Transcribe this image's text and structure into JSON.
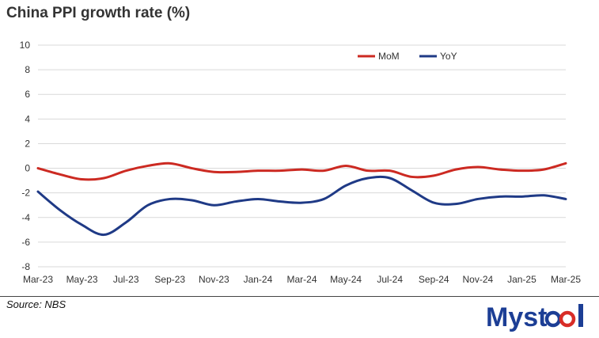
{
  "title": "China PPI growth rate (%)",
  "source": "Source: NBS",
  "logo_text": "Mysteel",
  "colors": {
    "MoM": "#cc2a22",
    "YoY": "#1f3a86",
    "grid": "#d9d9d9",
    "logo": "#1c3e95",
    "logo_accent": "#d82d27"
  },
  "chart_data": {
    "type": "line",
    "title": "China PPI growth rate (%)",
    "xlabel": "",
    "ylabel": "",
    "ylim": [
      -8,
      10
    ],
    "yticks": [
      -8,
      -6,
      -4,
      -2,
      0,
      2,
      4,
      6,
      8,
      10
    ],
    "x": [
      "Mar-23",
      "Apr-23",
      "May-23",
      "Jun-23",
      "Jul-23",
      "Aug-23",
      "Sep-23",
      "Oct-23",
      "Nov-23",
      "Dec-23",
      "Jan-24",
      "Feb-24",
      "Mar-24",
      "Apr-24",
      "May-24",
      "Jun-24",
      "Jul-24",
      "Aug-24",
      "Sep-24",
      "Oct-24",
      "Nov-24",
      "Dec-24",
      "Jan-25",
      "Feb-25",
      "Mar-25"
    ],
    "xtick_labels": [
      "Mar-23",
      "May-23",
      "Jul-23",
      "Sep-23",
      "Nov-23",
      "Jan-24",
      "Mar-24",
      "May-24",
      "Jul-24",
      "Sep-24",
      "Nov-24",
      "Jan-25",
      "Mar-25"
    ],
    "legend_position": "top-right",
    "grid": true,
    "series": [
      {
        "name": "MoM",
        "values": [
          0.0,
          -0.5,
          -0.9,
          -0.8,
          -0.2,
          0.2,
          0.4,
          0.0,
          -0.3,
          -0.3,
          -0.2,
          -0.2,
          -0.1,
          -0.2,
          0.2,
          -0.2,
          -0.2,
          -0.7,
          -0.6,
          -0.1,
          0.1,
          -0.1,
          -0.2,
          -0.1,
          0.4
        ]
      },
      {
        "name": "YoY",
        "values": [
          -1.9,
          -3.4,
          -4.6,
          -5.4,
          -4.4,
          -3.0,
          -2.5,
          -2.6,
          -3.0,
          -2.7,
          -2.5,
          -2.7,
          -2.8,
          -2.5,
          -1.4,
          -0.8,
          -0.8,
          -1.8,
          -2.8,
          -2.9,
          -2.5,
          -2.3,
          -2.3,
          -2.2,
          -2.5
        ]
      }
    ]
  }
}
